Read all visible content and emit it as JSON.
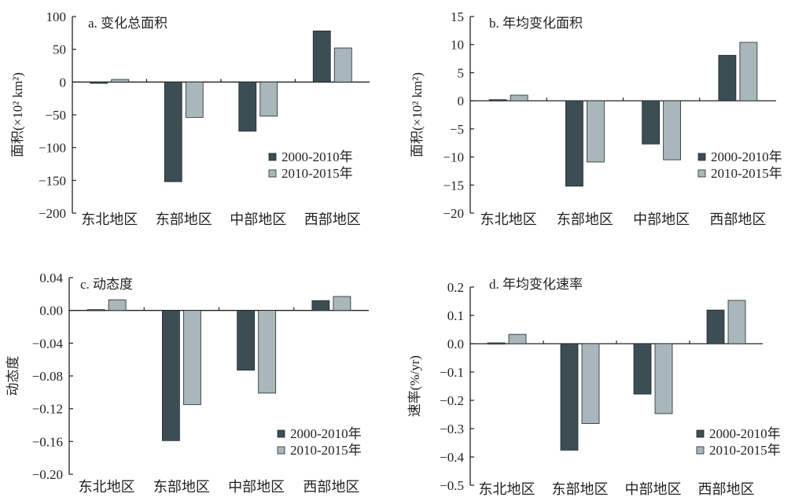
{
  "colors": {
    "series1": "#3d4d54",
    "series2": "#a9b6ba",
    "axis": "#222222",
    "text": "#222222"
  },
  "chart_data": [
    {
      "id": "a",
      "type": "bar",
      "title": "a. 变化总面积",
      "ylabel": "面积(×10² km²)",
      "xlabel": "",
      "categories": [
        "东北地区",
        "东部地区",
        "中部地区",
        "西部地区"
      ],
      "series": [
        {
          "name": "2000-2010年",
          "values": [
            -2,
            -152,
            -75,
            78
          ]
        },
        {
          "name": "2010-2015年",
          "values": [
            4,
            -54,
            -52,
            52
          ]
        }
      ],
      "ylim": [
        -200,
        100
      ],
      "yticks": [
        100,
        50,
        0,
        -50,
        -100,
        -150,
        -200
      ],
      "ytick_labels": [
        "100",
        "50",
        "0",
        "−50",
        "−100",
        "−150",
        "−200"
      ],
      "legend": "lower-right",
      "grid": false
    },
    {
      "id": "b",
      "type": "bar",
      "title": "b. 年均变化面积",
      "ylabel": "面积(×10² km²)",
      "xlabel": "",
      "categories": [
        "东北地区",
        "东部地区",
        "中部地区",
        "西部地区"
      ],
      "series": [
        {
          "name": "2000-2010年",
          "values": [
            0.2,
            -15.2,
            -7.7,
            8.1
          ]
        },
        {
          "name": "2010-2015年",
          "values": [
            1.0,
            -10.9,
            -10.5,
            10.4
          ]
        }
      ],
      "ylim": [
        -20,
        15
      ],
      "yticks": [
        15,
        10,
        5,
        0,
        -5,
        -10,
        -15,
        -20
      ],
      "ytick_labels": [
        "15",
        "10",
        "5",
        "0",
        "−5",
        "−10",
        "−15",
        "−20"
      ],
      "legend": "lower-right",
      "grid": false
    },
    {
      "id": "c",
      "type": "bar",
      "title": "c. 动态度",
      "ylabel": "动态度",
      "xlabel": "",
      "categories": [
        "东北地区",
        "东部地区",
        "中部地区",
        "西部地区"
      ],
      "series": [
        {
          "name": "2000-2010年",
          "values": [
            0.001,
            -0.159,
            -0.073,
            0.012
          ]
        },
        {
          "name": "2010-2015年",
          "values": [
            0.013,
            -0.115,
            -0.101,
            0.017
          ]
        }
      ],
      "ylim": [
        -0.2,
        0.04
      ],
      "yticks": [
        0.04,
        0.0,
        -0.04,
        -0.08,
        -0.12,
        -0.16,
        -0.2
      ],
      "ytick_labels": [
        "0.04",
        "0.00",
        "−0.04",
        "−0.08",
        "−0.12",
        "−0.16",
        "−0.20"
      ],
      "legend": "lower-right",
      "grid": false
    },
    {
      "id": "d",
      "type": "bar",
      "title": "d. 年均变化速率",
      "ylabel": "速率(%/yr)",
      "xlabel": "",
      "categories": [
        "东北地区",
        "东部地区",
        "中部地区",
        "西部地区"
      ],
      "series": [
        {
          "name": "2000-2010年",
          "values": [
            0.003,
            -0.376,
            -0.178,
            0.119
          ]
        },
        {
          "name": "2010-2015年",
          "values": [
            0.033,
            -0.282,
            -0.247,
            0.153
          ]
        }
      ],
      "ylim": [
        -0.5,
        0.2
      ],
      "yticks": [
        0.2,
        0.1,
        0.0,
        -0.1,
        -0.2,
        -0.3,
        -0.4,
        -0.5
      ],
      "ytick_labels": [
        "0.2",
        "0.1",
        "0.0",
        "−0.1",
        "−0.2",
        "−0.3",
        "−0.4",
        "−0.5"
      ],
      "legend": "lower-right",
      "grid": false
    }
  ]
}
